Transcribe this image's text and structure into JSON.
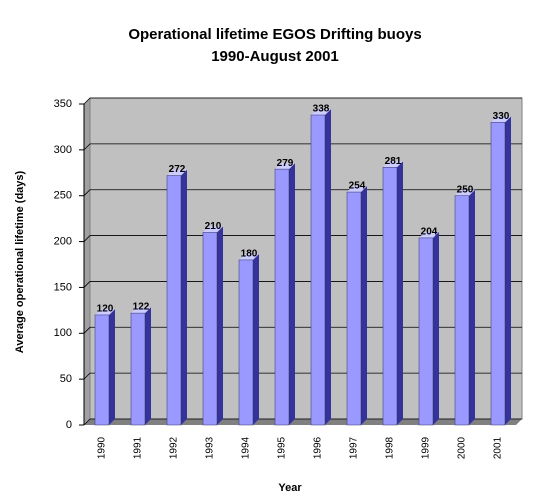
{
  "chart_data": {
    "type": "bar",
    "title": "Operational lifetime EGOS Drifting buoys",
    "subtitle": "1990-August 2001",
    "x_label": "Year",
    "y_label": "Average operational lifetime (days)",
    "categories": [
      "1990",
      "1991",
      "1992",
      "1993",
      "1994",
      "1995",
      "1996",
      "1997",
      "1998",
      "1999",
      "2000",
      "2001"
    ],
    "values": [
      120,
      122,
      272,
      210,
      180,
      279,
      338,
      254,
      281,
      204,
      250,
      330
    ],
    "color": "#9999ff",
    "ylim": [
      0,
      350
    ],
    "yticks": [
      0,
      50,
      100,
      150,
      200,
      250,
      300,
      350
    ],
    "grid": true
  }
}
